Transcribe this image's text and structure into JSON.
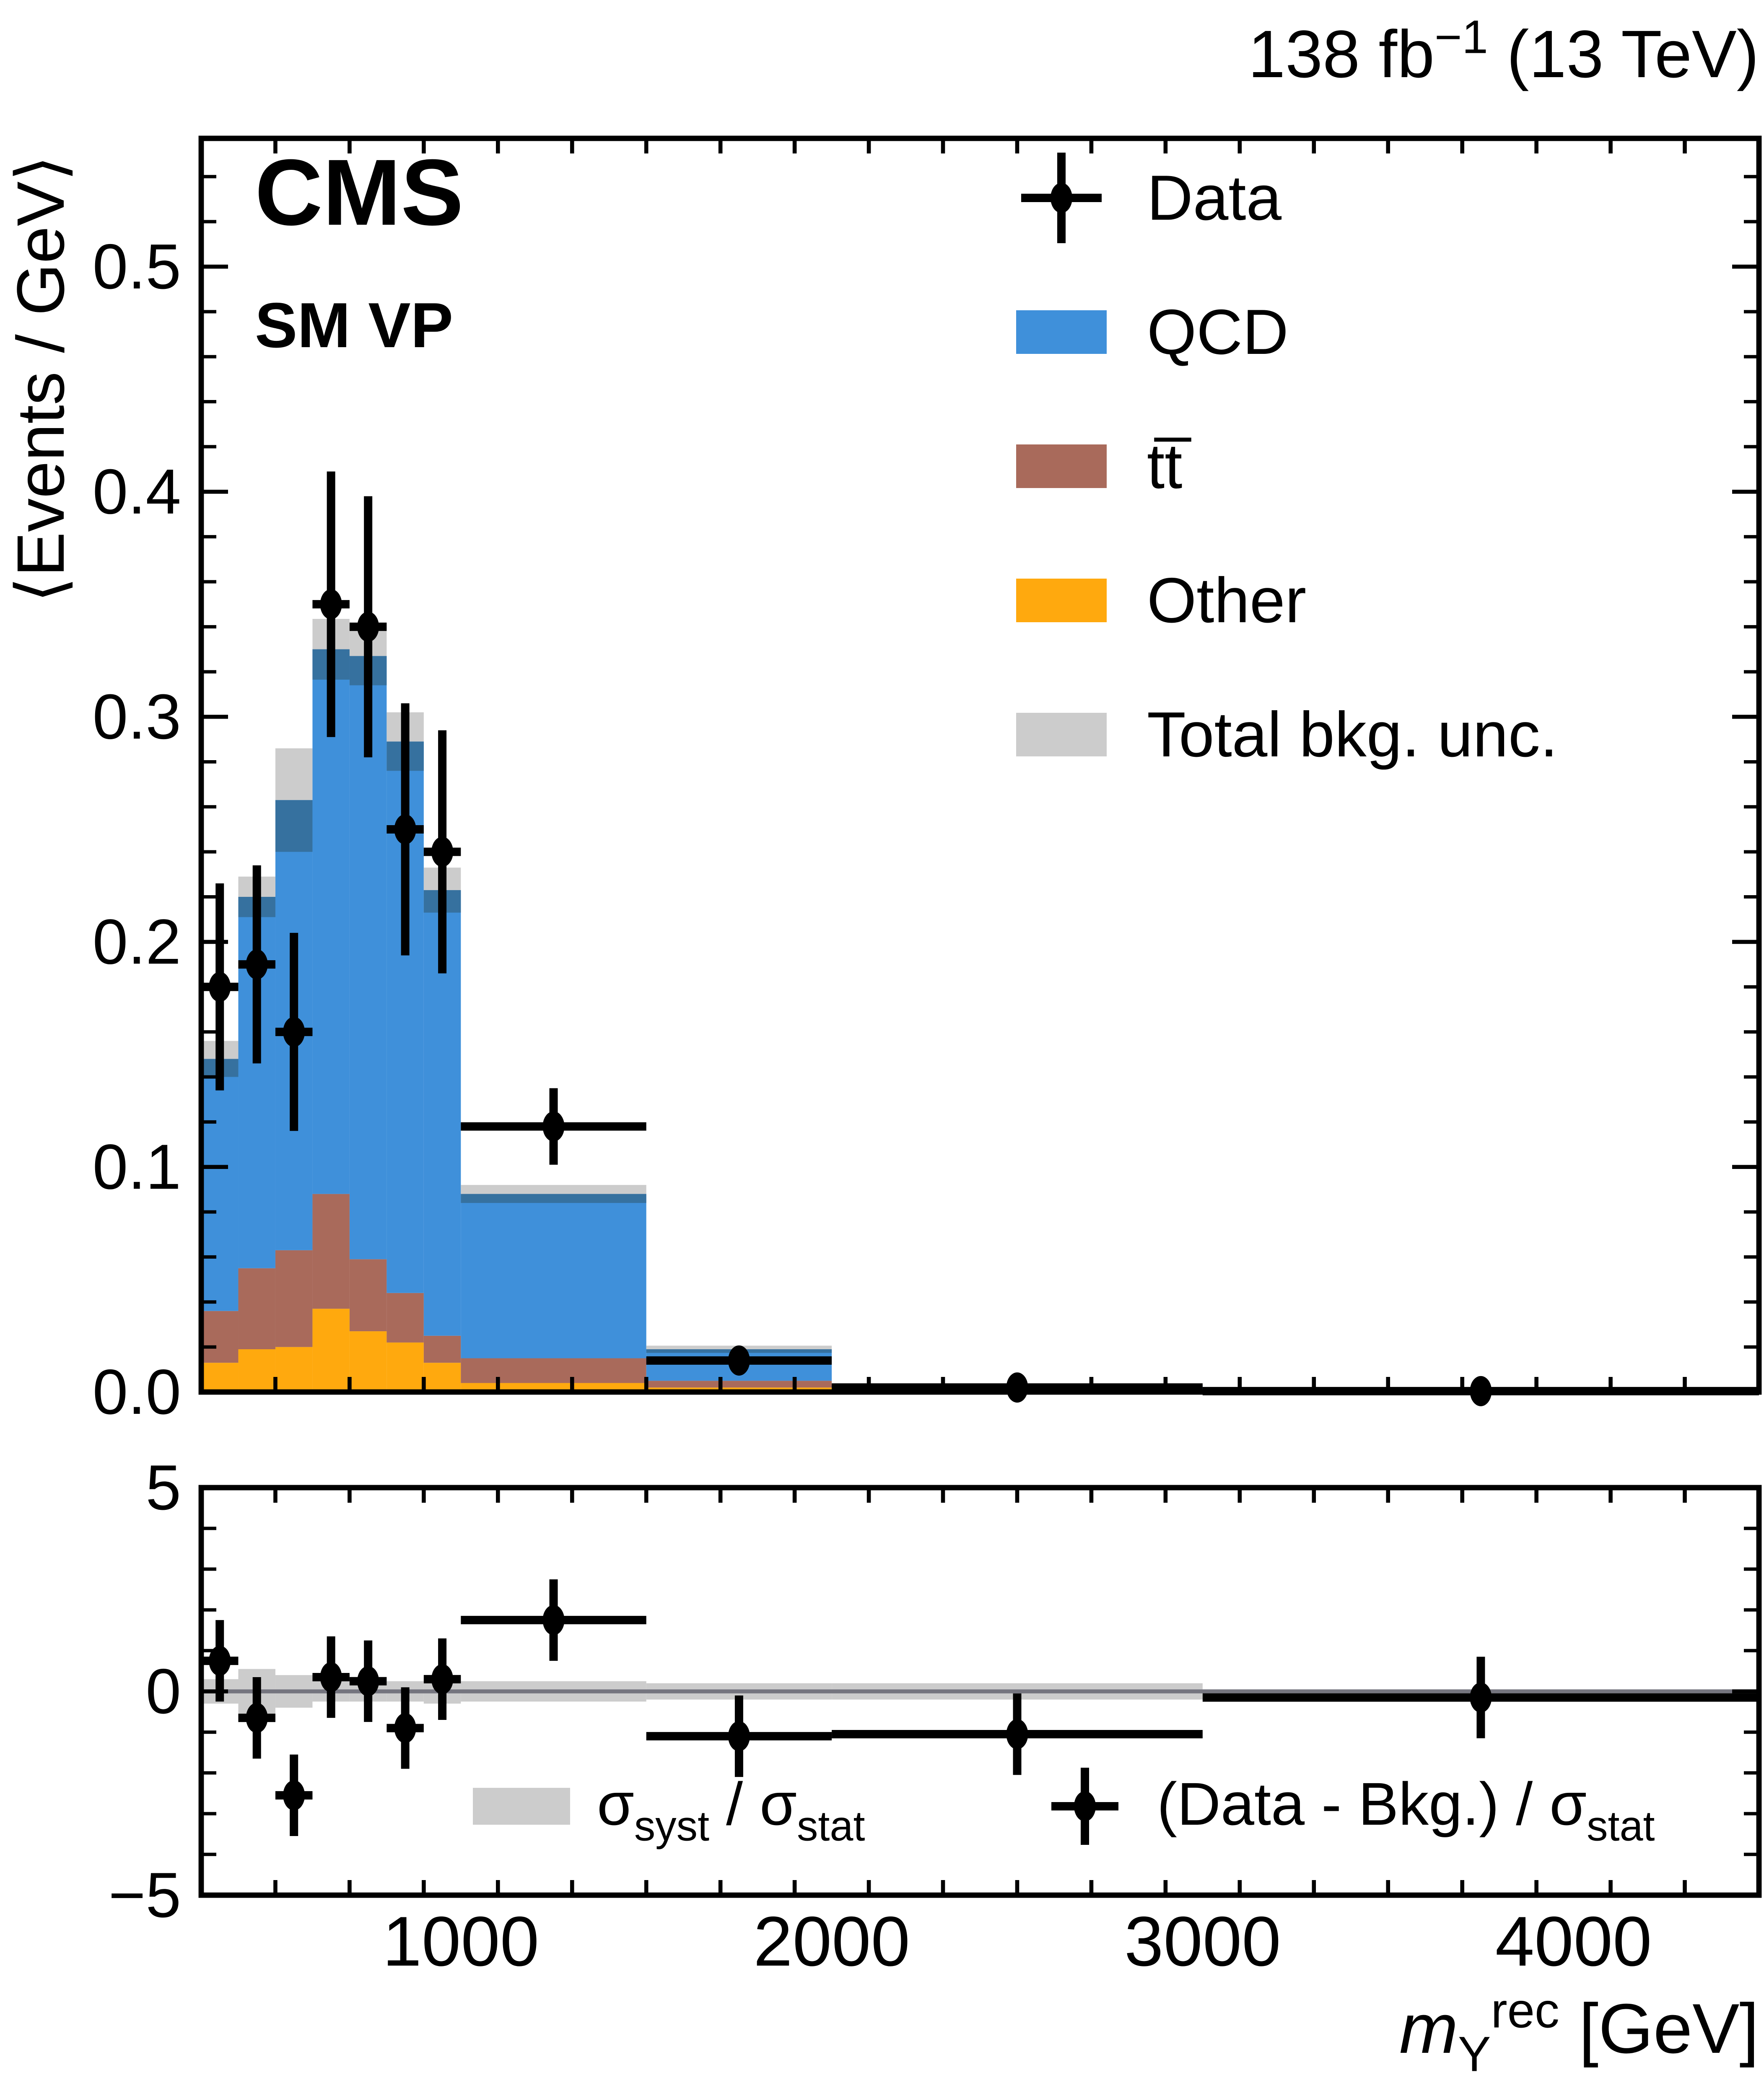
{
  "page": {
    "background": "#FFFFFF"
  },
  "header": {
    "experiment": "CMS",
    "category": "SM VP",
    "luminosity_text": "138 fb−1 (13 TeV)",
    "luminosity_parts": [
      {
        "t": "138 fb"
      },
      {
        "t": "−1",
        "sup": true
      },
      {
        "t": " (13 TeV)"
      }
    ]
  },
  "chart_data": {
    "type": "bar",
    "subtype": "stacked-histogram-with-data-points-and-pull-panel",
    "title": "",
    "xlabel": "m_Y_rec [GeV]",
    "xlabel_parts": [
      {
        "t": "m",
        "italic": true
      },
      {
        "t": "Y",
        "sub": true
      },
      {
        "t": "rec",
        "sup": true
      },
      {
        "t": " [GeV]"
      }
    ],
    "xlim": [
      300,
      4500
    ],
    "xticks": [
      1000,
      2000,
      3000,
      4000
    ],
    "xtick_labels": [
      "1000",
      "2000",
      "3000",
      "4000"
    ],
    "x_minor_step": 200,
    "bin_edges": [
      300,
      400,
      500,
      600,
      700,
      800,
      900,
      1000,
      1500,
      2000,
      3000,
      4500
    ],
    "upper_panel": {
      "ylabel": "⟨Events / GeV⟩",
      "ylim": [
        0,
        0.557
      ],
      "yticks": [
        0,
        0.1,
        0.2,
        0.3,
        0.4,
        0.5
      ],
      "ytick_labels": [
        "0.0",
        "0.1",
        "0.2",
        "0.3",
        "0.4",
        "0.5"
      ],
      "y_minor_step": 0.02,
      "series": [
        {
          "name": "Other",
          "color": "#FFA90E",
          "values": [
            0.013,
            0.019,
            0.02,
            0.037,
            0.027,
            0.022,
            0.013,
            0.004,
            0.002,
            0.0004,
            0.0001
          ]
        },
        {
          "name": "tt̅",
          "color": "#A96A5B",
          "values": [
            0.023,
            0.036,
            0.043,
            0.051,
            0.032,
            0.022,
            0.012,
            0.011,
            0.003,
            0.0008,
            0.0002
          ]
        },
        {
          "name": "QCD",
          "color": "#3F90DA",
          "values": [
            0.112,
            0.165,
            0.2,
            0.242,
            0.268,
            0.245,
            0.198,
            0.073,
            0.014,
            0.0018,
            0.0003
          ]
        }
      ],
      "total_background": [
        0.148,
        0.22,
        0.263,
        0.33,
        0.327,
        0.289,
        0.223,
        0.088,
        0.019,
        0.003,
        0.0006
      ],
      "background_uncertainty": [
        0.008,
        0.009,
        0.023,
        0.0135,
        0.013,
        0.013,
        0.01,
        0.004,
        0.0016,
        0.0004,
        0.0002
      ],
      "data": {
        "name": "Data",
        "x": [
          350,
          450,
          550,
          650,
          750,
          850,
          950,
          1250,
          1750,
          2500,
          3750
        ],
        "y": [
          0.18,
          0.19,
          0.16,
          0.35,
          0.34,
          0.25,
          0.24,
          0.118,
          0.014,
          0.002,
          0.0004
        ],
        "yerr": [
          0.046,
          0.044,
          0.044,
          0.059,
          0.058,
          0.056,
          0.054,
          0.017,
          0.006,
          0.0015,
          0.0008
        ]
      }
    },
    "lower_panel": {
      "ylim": [
        -5,
        5
      ],
      "yticks": [
        -5,
        0,
        5
      ],
      "ytick_labels": [
        "−5",
        "0",
        "5"
      ],
      "y_minor_step": 1,
      "pull_points": [
        0.75,
        -0.65,
        -2.55,
        0.35,
        0.25,
        -0.9,
        0.3,
        1.75,
        -1.1,
        -1.05,
        -0.15
      ],
      "pull_err": [
        1,
        1,
        1,
        1,
        1,
        1,
        1,
        1,
        1,
        1,
        1
      ],
      "syst_band": [
        0.3,
        0.55,
        0.4,
        0.25,
        0.25,
        0.25,
        0.3,
        0.25,
        0.2,
        0.2,
        0.05
      ],
      "band_label_text": "σsyst / σstat",
      "band_label_parts": [
        {
          "t": "σ"
        },
        {
          "t": "syst",
          "sub": true
        },
        {
          "t": " / σ"
        },
        {
          "t": "stat",
          "sub": true
        }
      ],
      "points_label_text": "(Data - Bkg.) / σstat",
      "points_label_parts": [
        {
          "t": "(Data - Bkg.) / σ"
        },
        {
          "t": "stat",
          "sub": true
        }
      ]
    },
    "legend": {
      "position": "upper-right",
      "items": [
        {
          "label": "Data",
          "type": "marker",
          "color": "#000000"
        },
        {
          "label": "QCD",
          "type": "fill",
          "color": "#3F90DA"
        },
        {
          "label": "tt̅",
          "type": "fill",
          "color": "#A96A5B"
        },
        {
          "label": "Other",
          "type": "fill",
          "color": "#FFA90E"
        },
        {
          "label": "Total bkg. unc.",
          "type": "fill",
          "color": "#CCCCCC"
        }
      ]
    },
    "colors": {
      "qcd": "#3F90DA",
      "ttbar": "#A96A5B",
      "other": "#FFA90E",
      "unc_band": "#CCCCCC",
      "unc_band_over_qcd": "#36719F",
      "data": "#000000",
      "zero_line": "#75757F",
      "frame": "#000000"
    }
  }
}
